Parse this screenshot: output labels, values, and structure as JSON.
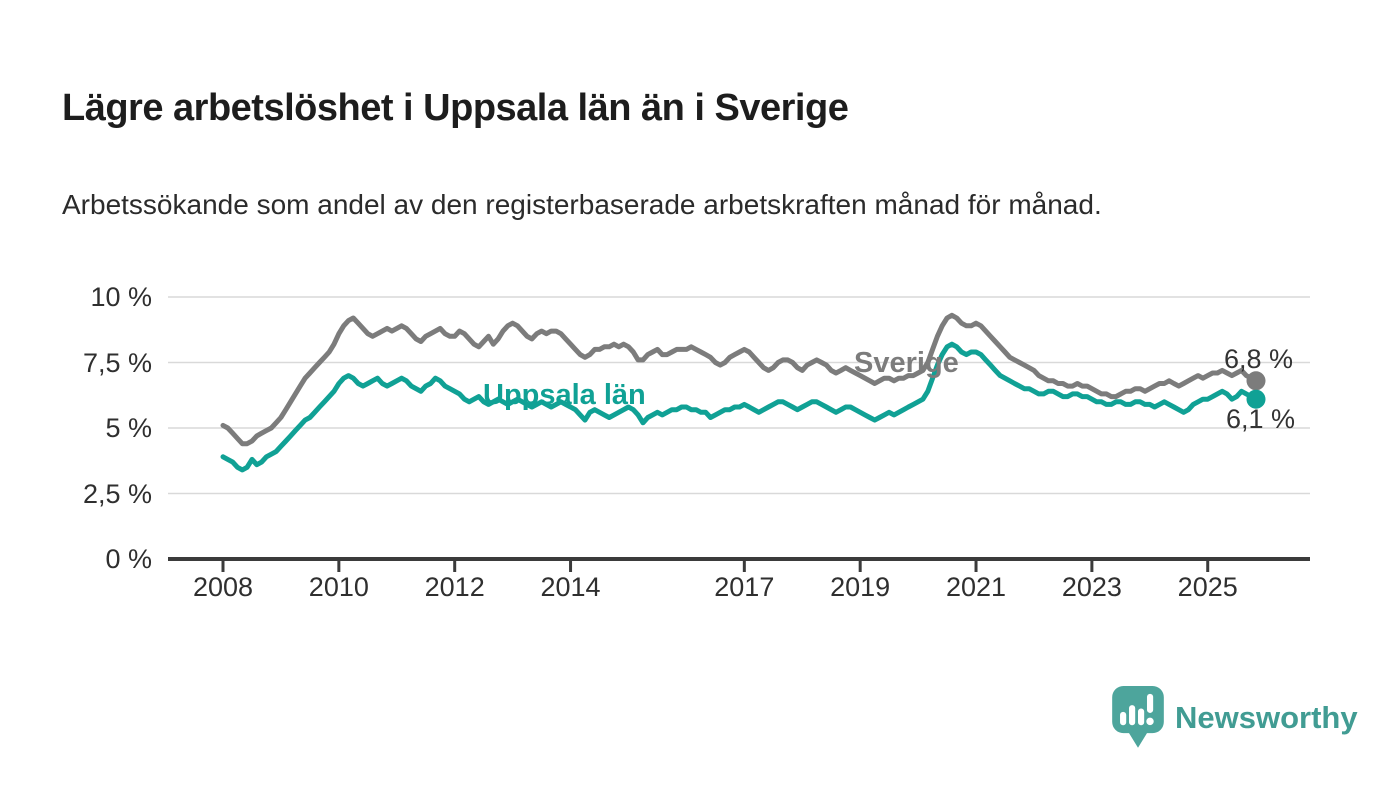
{
  "header": {
    "title": "Lägre arbetslöshet i Uppsala län än i Sverige",
    "subtitle": "Arbetssökande som andel av den registerbaserade arbetskraften månad för månad."
  },
  "chart_data": {
    "type": "line",
    "title": "Lägre arbetslöshet i Uppsala län än i Sverige",
    "subtitle": "Arbetssökande som andel av den registerbaserade arbetskraften månad för månad.",
    "unit": "%",
    "x_start": "2008-01",
    "x_end": "2025-11",
    "x_frequency": "monthly",
    "grid": "horizontal",
    "legend_position": "inline-labels",
    "ylim": [
      0,
      10.5
    ],
    "y_tick_values": [
      0,
      2.5,
      5,
      7.5,
      10
    ],
    "y_tick_labels": [
      "0 %",
      "2,5 %",
      "5 %",
      "7,5 %",
      "10 %"
    ],
    "x_tick_years": [
      2008,
      2010,
      2012,
      2014,
      2017,
      2019,
      2021,
      2023,
      2025
    ],
    "x_tick_labels": [
      "2008",
      "2010",
      "2012",
      "2014",
      "2017",
      "2019",
      "2021",
      "2023",
      "2025"
    ],
    "series": [
      {
        "name": "Sverige",
        "color": "#7c7c7c",
        "end_label": "6,8 %",
        "end_value": 6.8,
        "values": [
          5.1,
          5.0,
          4.8,
          4.6,
          4.4,
          4.4,
          4.5,
          4.7,
          4.8,
          4.9,
          5.0,
          5.2,
          5.4,
          5.7,
          6.0,
          6.3,
          6.6,
          6.9,
          7.1,
          7.3,
          7.5,
          7.7,
          7.9,
          8.2,
          8.6,
          8.9,
          9.1,
          9.2,
          9.0,
          8.8,
          8.6,
          8.5,
          8.6,
          8.7,
          8.8,
          8.7,
          8.8,
          8.9,
          8.8,
          8.6,
          8.4,
          8.3,
          8.5,
          8.6,
          8.7,
          8.8,
          8.6,
          8.5,
          8.5,
          8.7,
          8.6,
          8.4,
          8.2,
          8.1,
          8.3,
          8.5,
          8.2,
          8.4,
          8.7,
          8.9,
          9.0,
          8.9,
          8.7,
          8.5,
          8.4,
          8.6,
          8.7,
          8.6,
          8.7,
          8.7,
          8.6,
          8.4,
          8.2,
          8.0,
          7.8,
          7.7,
          7.8,
          8.0,
          8.0,
          8.1,
          8.1,
          8.2,
          8.1,
          8.2,
          8.1,
          7.9,
          7.6,
          7.6,
          7.8,
          7.9,
          8.0,
          7.8,
          7.8,
          7.9,
          8.0,
          8.0,
          8.0,
          8.1,
          8.0,
          7.9,
          7.8,
          7.7,
          7.5,
          7.4,
          7.5,
          7.7,
          7.8,
          7.9,
          8.0,
          7.9,
          7.7,
          7.5,
          7.3,
          7.2,
          7.3,
          7.5,
          7.6,
          7.6,
          7.5,
          7.3,
          7.2,
          7.4,
          7.5,
          7.6,
          7.5,
          7.4,
          7.2,
          7.1,
          7.2,
          7.3,
          7.2,
          7.1,
          7.0,
          6.9,
          6.8,
          6.7,
          6.8,
          6.9,
          6.9,
          6.8,
          6.9,
          6.9,
          7.0,
          7.0,
          7.1,
          7.2,
          7.5,
          8.0,
          8.5,
          8.9,
          9.2,
          9.3,
          9.2,
          9.0,
          8.9,
          8.9,
          9.0,
          8.9,
          8.7,
          8.5,
          8.3,
          8.1,
          7.9,
          7.7,
          7.6,
          7.5,
          7.4,
          7.3,
          7.2,
          7.0,
          6.9,
          6.8,
          6.8,
          6.7,
          6.7,
          6.6,
          6.6,
          6.7,
          6.6,
          6.6,
          6.5,
          6.4,
          6.3,
          6.3,
          6.2,
          6.2,
          6.3,
          6.4,
          6.4,
          6.5,
          6.5,
          6.4,
          6.5,
          6.6,
          6.7,
          6.7,
          6.8,
          6.7,
          6.6,
          6.7,
          6.8,
          6.9,
          7.0,
          6.9,
          7.0,
          7.1,
          7.1,
          7.2,
          7.1,
          7.0,
          7.1,
          7.2,
          7.0,
          6.9,
          6.8
        ]
      },
      {
        "name": "Uppsala län",
        "color": "#10a195",
        "end_label": "6,1 %",
        "end_value": 6.1,
        "values": [
          3.9,
          3.8,
          3.7,
          3.5,
          3.4,
          3.5,
          3.8,
          3.6,
          3.7,
          3.9,
          4.0,
          4.1,
          4.3,
          4.5,
          4.7,
          4.9,
          5.1,
          5.3,
          5.4,
          5.6,
          5.8,
          6.0,
          6.2,
          6.4,
          6.7,
          6.9,
          7.0,
          6.9,
          6.7,
          6.6,
          6.7,
          6.8,
          6.9,
          6.7,
          6.6,
          6.7,
          6.8,
          6.9,
          6.8,
          6.6,
          6.5,
          6.4,
          6.6,
          6.7,
          6.9,
          6.8,
          6.6,
          6.5,
          6.4,
          6.3,
          6.1,
          6.0,
          6.1,
          6.2,
          6.0,
          5.9,
          6.0,
          6.1,
          6.0,
          5.9,
          6.0,
          6.1,
          6.0,
          5.9,
          5.8,
          5.9,
          6.0,
          5.9,
          5.8,
          5.9,
          6.0,
          5.9,
          5.8,
          5.7,
          5.5,
          5.3,
          5.6,
          5.7,
          5.6,
          5.5,
          5.4,
          5.5,
          5.6,
          5.7,
          5.8,
          5.7,
          5.5,
          5.2,
          5.4,
          5.5,
          5.6,
          5.5,
          5.6,
          5.7,
          5.7,
          5.8,
          5.8,
          5.7,
          5.7,
          5.6,
          5.6,
          5.4,
          5.5,
          5.6,
          5.7,
          5.7,
          5.8,
          5.8,
          5.9,
          5.8,
          5.7,
          5.6,
          5.7,
          5.8,
          5.9,
          6.0,
          6.0,
          5.9,
          5.8,
          5.7,
          5.8,
          5.9,
          6.0,
          6.0,
          5.9,
          5.8,
          5.7,
          5.6,
          5.7,
          5.8,
          5.8,
          5.7,
          5.6,
          5.5,
          5.4,
          5.3,
          5.4,
          5.5,
          5.6,
          5.5,
          5.6,
          5.7,
          5.8,
          5.9,
          6.0,
          6.1,
          6.4,
          6.9,
          7.4,
          7.8,
          8.1,
          8.2,
          8.1,
          7.9,
          7.8,
          7.9,
          7.9,
          7.8,
          7.6,
          7.4,
          7.2,
          7.0,
          6.9,
          6.8,
          6.7,
          6.6,
          6.5,
          6.5,
          6.4,
          6.3,
          6.3,
          6.4,
          6.4,
          6.3,
          6.2,
          6.2,
          6.3,
          6.3,
          6.2,
          6.2,
          6.1,
          6.0,
          6.0,
          5.9,
          5.9,
          6.0,
          6.0,
          5.9,
          5.9,
          6.0,
          6.0,
          5.9,
          5.9,
          5.8,
          5.9,
          6.0,
          5.9,
          5.8,
          5.7,
          5.6,
          5.7,
          5.9,
          6.0,
          6.1,
          6.1,
          6.2,
          6.3,
          6.4,
          6.3,
          6.1,
          6.2,
          6.4,
          6.3,
          6.2,
          6.1
        ]
      }
    ]
  },
  "style": {
    "grid_color": "#d9d9d9",
    "axis_color": "#3b3b3b",
    "tick_label_color": "#2f2f2f"
  },
  "branding": {
    "logo_text": "Newsworthy",
    "logo_color": "#4da59c",
    "logo_text_color": "#419c93",
    "logo_icon": "bar-chart-speech-bubble-icon"
  }
}
